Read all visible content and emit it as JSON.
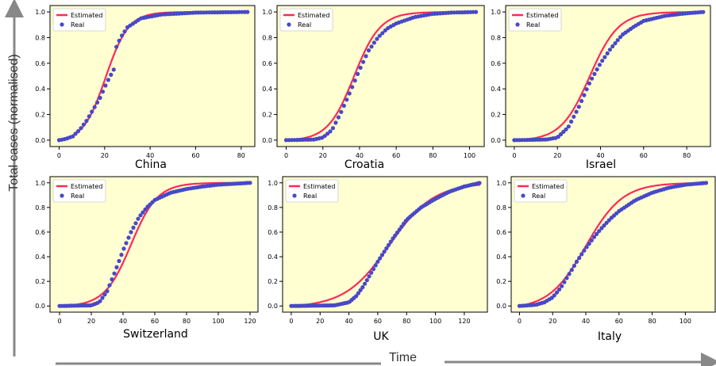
{
  "axis_titles": {
    "y": "Total cases (normalised)",
    "x": "Time"
  },
  "colors": {
    "background": "#ffffd2",
    "estimated": "#ff2a55",
    "real": "#4848c8",
    "arrow": "#888888"
  },
  "chart_data": [
    {
      "type": "scatter",
      "title": "China",
      "xlim": [
        -4,
        86
      ],
      "ylim": [
        -0.05,
        1.05
      ],
      "xticks": [
        0,
        20,
        40,
        60,
        80
      ],
      "yticks": [
        0.0,
        0.2,
        0.4,
        0.6,
        0.8,
        1.0
      ],
      "grid": false,
      "legend": "top-left",
      "legend_labels": [
        "Estimated",
        "Real"
      ],
      "n": 83,
      "series": [
        {
          "name": "Estimated",
          "kind": "line",
          "curve": "logistic",
          "x0": 20.5,
          "k": 0.2
        },
        {
          "name": "Real",
          "kind": "points",
          "x": [
            0,
            3,
            6,
            9,
            12,
            15,
            18,
            21,
            24,
            25,
            27,
            30,
            36,
            45,
            60,
            83
          ],
          "y": [
            0.0,
            0.01,
            0.03,
            0.08,
            0.15,
            0.24,
            0.33,
            0.45,
            0.55,
            0.72,
            0.8,
            0.88,
            0.95,
            0.98,
            0.995,
            1.0
          ]
        }
      ]
    },
    {
      "type": "scatter",
      "title": "Croatia",
      "xlim": [
        -5,
        108
      ],
      "ylim": [
        -0.05,
        1.05
      ],
      "xticks": [
        0,
        20,
        40,
        60,
        80,
        100
      ],
      "yticks": [
        0.0,
        0.2,
        0.4,
        0.6,
        0.8,
        1.0
      ],
      "grid": false,
      "legend": "top-left",
      "legend_labels": [
        "Estimated",
        "Real"
      ],
      "n": 104,
      "series": [
        {
          "name": "Estimated",
          "kind": "line",
          "curve": "logistic",
          "x0": 37,
          "k": 0.14
        },
        {
          "name": "Real",
          "kind": "points",
          "x": [
            0,
            15,
            20,
            25,
            30,
            35,
            40,
            45,
            50,
            55,
            60,
            70,
            80,
            90,
            104
          ],
          "y": [
            0.0,
            0.005,
            0.02,
            0.08,
            0.22,
            0.38,
            0.55,
            0.7,
            0.8,
            0.87,
            0.91,
            0.96,
            0.985,
            0.995,
            1.0
          ]
        }
      ]
    },
    {
      "type": "scatter",
      "title": "Israel",
      "xlim": [
        -4,
        91
      ],
      "ylim": [
        -0.05,
        1.05
      ],
      "xticks": [
        0,
        20,
        40,
        60,
        80
      ],
      "yticks": [
        0.0,
        0.2,
        0.4,
        0.6,
        0.8,
        1.0
      ],
      "grid": false,
      "legend": "top-left",
      "legend_labels": [
        "Estimated",
        "Real"
      ],
      "n": 88,
      "series": [
        {
          "name": "Estimated",
          "kind": "line",
          "curve": "logistic",
          "x0": 35,
          "k": 0.15
        },
        {
          "name": "Real",
          "kind": "points",
          "x": [
            0,
            15,
            20,
            25,
            30,
            35,
            40,
            45,
            50,
            55,
            60,
            70,
            80,
            88
          ],
          "y": [
            0.0,
            0.005,
            0.02,
            0.1,
            0.26,
            0.45,
            0.6,
            0.72,
            0.82,
            0.88,
            0.93,
            0.97,
            0.99,
            1.0
          ]
        }
      ]
    },
    {
      "type": "scatter",
      "title": "Switzerland",
      "xlim": [
        -6,
        125
      ],
      "ylim": [
        -0.05,
        1.05
      ],
      "xticks": [
        0,
        20,
        40,
        60,
        80,
        100,
        120
      ],
      "yticks": [
        0.0,
        0.2,
        0.4,
        0.6,
        0.8,
        1.0
      ],
      "grid": false,
      "legend": "top-left",
      "legend_labels": [
        "Estimated",
        "Real"
      ],
      "n": 120,
      "series": [
        {
          "name": "Estimated",
          "kind": "line",
          "curve": "logistic",
          "x0": 45,
          "k": 0.12
        },
        {
          "name": "Real",
          "kind": "points",
          "x": [
            0,
            20,
            25,
            30,
            35,
            40,
            45,
            50,
            55,
            60,
            70,
            80,
            90,
            100,
            120
          ],
          "y": [
            0.0,
            0.005,
            0.03,
            0.12,
            0.28,
            0.45,
            0.6,
            0.72,
            0.8,
            0.86,
            0.92,
            0.95,
            0.97,
            0.985,
            1.0
          ]
        }
      ]
    },
    {
      "type": "scatter",
      "title": "UK",
      "xlim": [
        -6,
        136
      ],
      "ylim": [
        -0.05,
        1.05
      ],
      "xticks": [
        0,
        20,
        40,
        60,
        80,
        100,
        120
      ],
      "yticks": [
        0.0,
        0.2,
        0.4,
        0.6,
        0.8,
        1.0
      ],
      "grid": false,
      "legend": "top-left",
      "legend_labels": [
        "Estimated",
        "Real"
      ],
      "n": 131,
      "series": [
        {
          "name": "Estimated",
          "kind": "line",
          "curve": "logistic",
          "x0": 68,
          "k": 0.065
        },
        {
          "name": "Real",
          "kind": "points",
          "x": [
            0,
            30,
            40,
            45,
            50,
            55,
            60,
            65,
            70,
            75,
            80,
            90,
            100,
            110,
            120,
            131
          ],
          "y": [
            0.0,
            0.005,
            0.03,
            0.08,
            0.16,
            0.26,
            0.36,
            0.45,
            0.54,
            0.62,
            0.7,
            0.8,
            0.87,
            0.93,
            0.97,
            1.0
          ]
        }
      ]
    },
    {
      "type": "scatter",
      "title": "Italy",
      "xlim": [
        -5,
        118
      ],
      "ylim": [
        -0.05,
        1.05
      ],
      "xticks": [
        0,
        20,
        40,
        60,
        80,
        100
      ],
      "yticks": [
        0.0,
        0.2,
        0.4,
        0.6,
        0.8,
        1.0
      ],
      "grid": false,
      "legend": "top-left",
      "legend_labels": [
        "Estimated",
        "Real"
      ],
      "n": 113,
      "series": [
        {
          "name": "Estimated",
          "kind": "line",
          "curve": "logistic",
          "x0": 40,
          "k": 0.09
        },
        {
          "name": "Real",
          "kind": "points",
          "x": [
            0,
            10,
            15,
            20,
            25,
            30,
            35,
            40,
            45,
            50,
            55,
            60,
            70,
            80,
            90,
            100,
            113
          ],
          "y": [
            0.0,
            0.01,
            0.03,
            0.07,
            0.15,
            0.26,
            0.37,
            0.47,
            0.56,
            0.64,
            0.71,
            0.77,
            0.86,
            0.92,
            0.96,
            0.985,
            1.0
          ]
        }
      ]
    }
  ]
}
